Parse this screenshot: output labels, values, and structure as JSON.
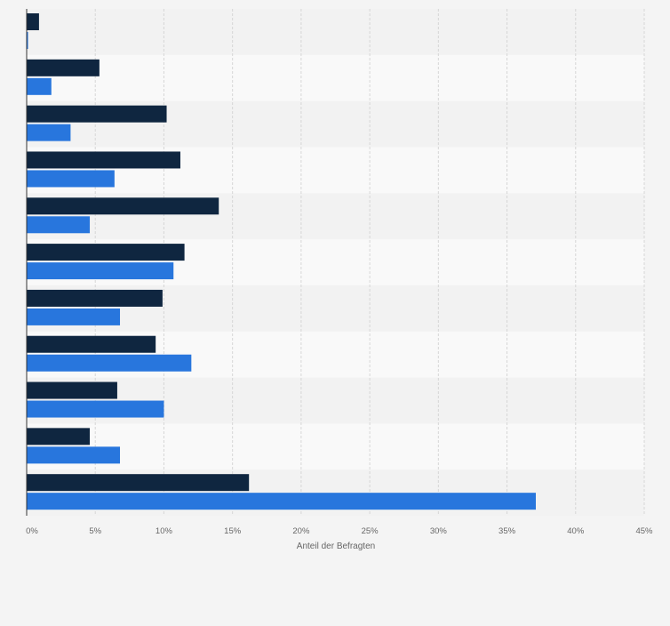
{
  "chart_data": {
    "type": "bar",
    "orientation": "horizontal",
    "categories": [
      "",
      "",
      "",
      "",
      "",
      "",
      "",
      "",
      "",
      "",
      ""
    ],
    "series": [
      {
        "name": "",
        "color": "#0f2640",
        "values": [
          0.9,
          5.3,
          10.2,
          11.2,
          14.0,
          11.5,
          9.9,
          9.4,
          6.6,
          4.6,
          16.2
        ]
      },
      {
        "name": "",
        "color": "#2876dd",
        "values": [
          0.1,
          1.8,
          3.2,
          6.4,
          4.6,
          10.7,
          6.8,
          12.0,
          10.0,
          6.8,
          37.1
        ]
      }
    ],
    "xlabel": "Anteil der Befragten",
    "xlim": [
      0,
      45
    ],
    "xticks": [
      0,
      5,
      10,
      15,
      20,
      25,
      30,
      35,
      40,
      45
    ],
    "xtick_labels": [
      "0%",
      "5%",
      "10%",
      "15%",
      "20%",
      "25%",
      "30%",
      "35%",
      "40%",
      "45%"
    ],
    "grid": "vertical dashed",
    "legend": "none"
  }
}
